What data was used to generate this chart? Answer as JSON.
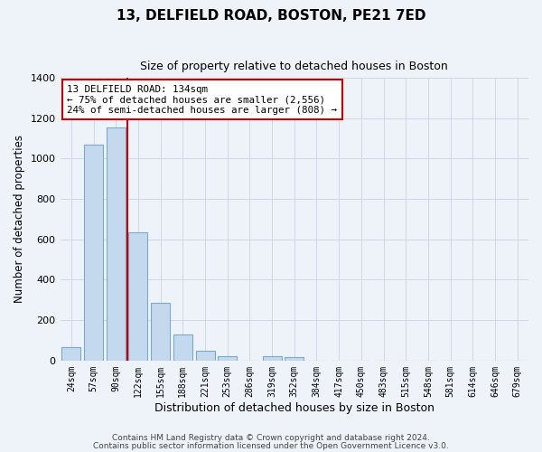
{
  "title": "13, DELFIELD ROAD, BOSTON, PE21 7ED",
  "subtitle": "Size of property relative to detached houses in Boston",
  "xlabel": "Distribution of detached houses by size in Boston",
  "ylabel": "Number of detached properties",
  "categories": [
    "24sqm",
    "57sqm",
    "90sqm",
    "122sqm",
    "155sqm",
    "188sqm",
    "221sqm",
    "253sqm",
    "286sqm",
    "319sqm",
    "352sqm",
    "384sqm",
    "417sqm",
    "450sqm",
    "483sqm",
    "515sqm",
    "548sqm",
    "581sqm",
    "614sqm",
    "646sqm",
    "679sqm"
  ],
  "values": [
    65,
    1070,
    1155,
    635,
    285,
    130,
    48,
    20,
    0,
    20,
    15,
    0,
    0,
    0,
    0,
    0,
    0,
    0,
    0,
    0,
    0
  ],
  "bar_color": "#c5d9ee",
  "bar_edge_color": "#7aaace",
  "grid_color": "#d0d8e8",
  "bg_color": "#eef2f9",
  "vline_x": 2.5,
  "vline_color": "#cc0000",
  "annotation_text": "13 DELFIELD ROAD: 134sqm\n← 75% of detached houses are smaller (2,556)\n24% of semi-detached houses are larger (808) →",
  "annotation_box_color": "#ffffff",
  "annotation_box_edge_color": "#cc0000",
  "ylim": [
    0,
    1400
  ],
  "yticks": [
    0,
    200,
    400,
    600,
    800,
    1000,
    1200,
    1400
  ],
  "footer1": "Contains HM Land Registry data © Crown copyright and database right 2024.",
  "footer2": "Contains public sector information licensed under the Open Government Licence v3.0."
}
